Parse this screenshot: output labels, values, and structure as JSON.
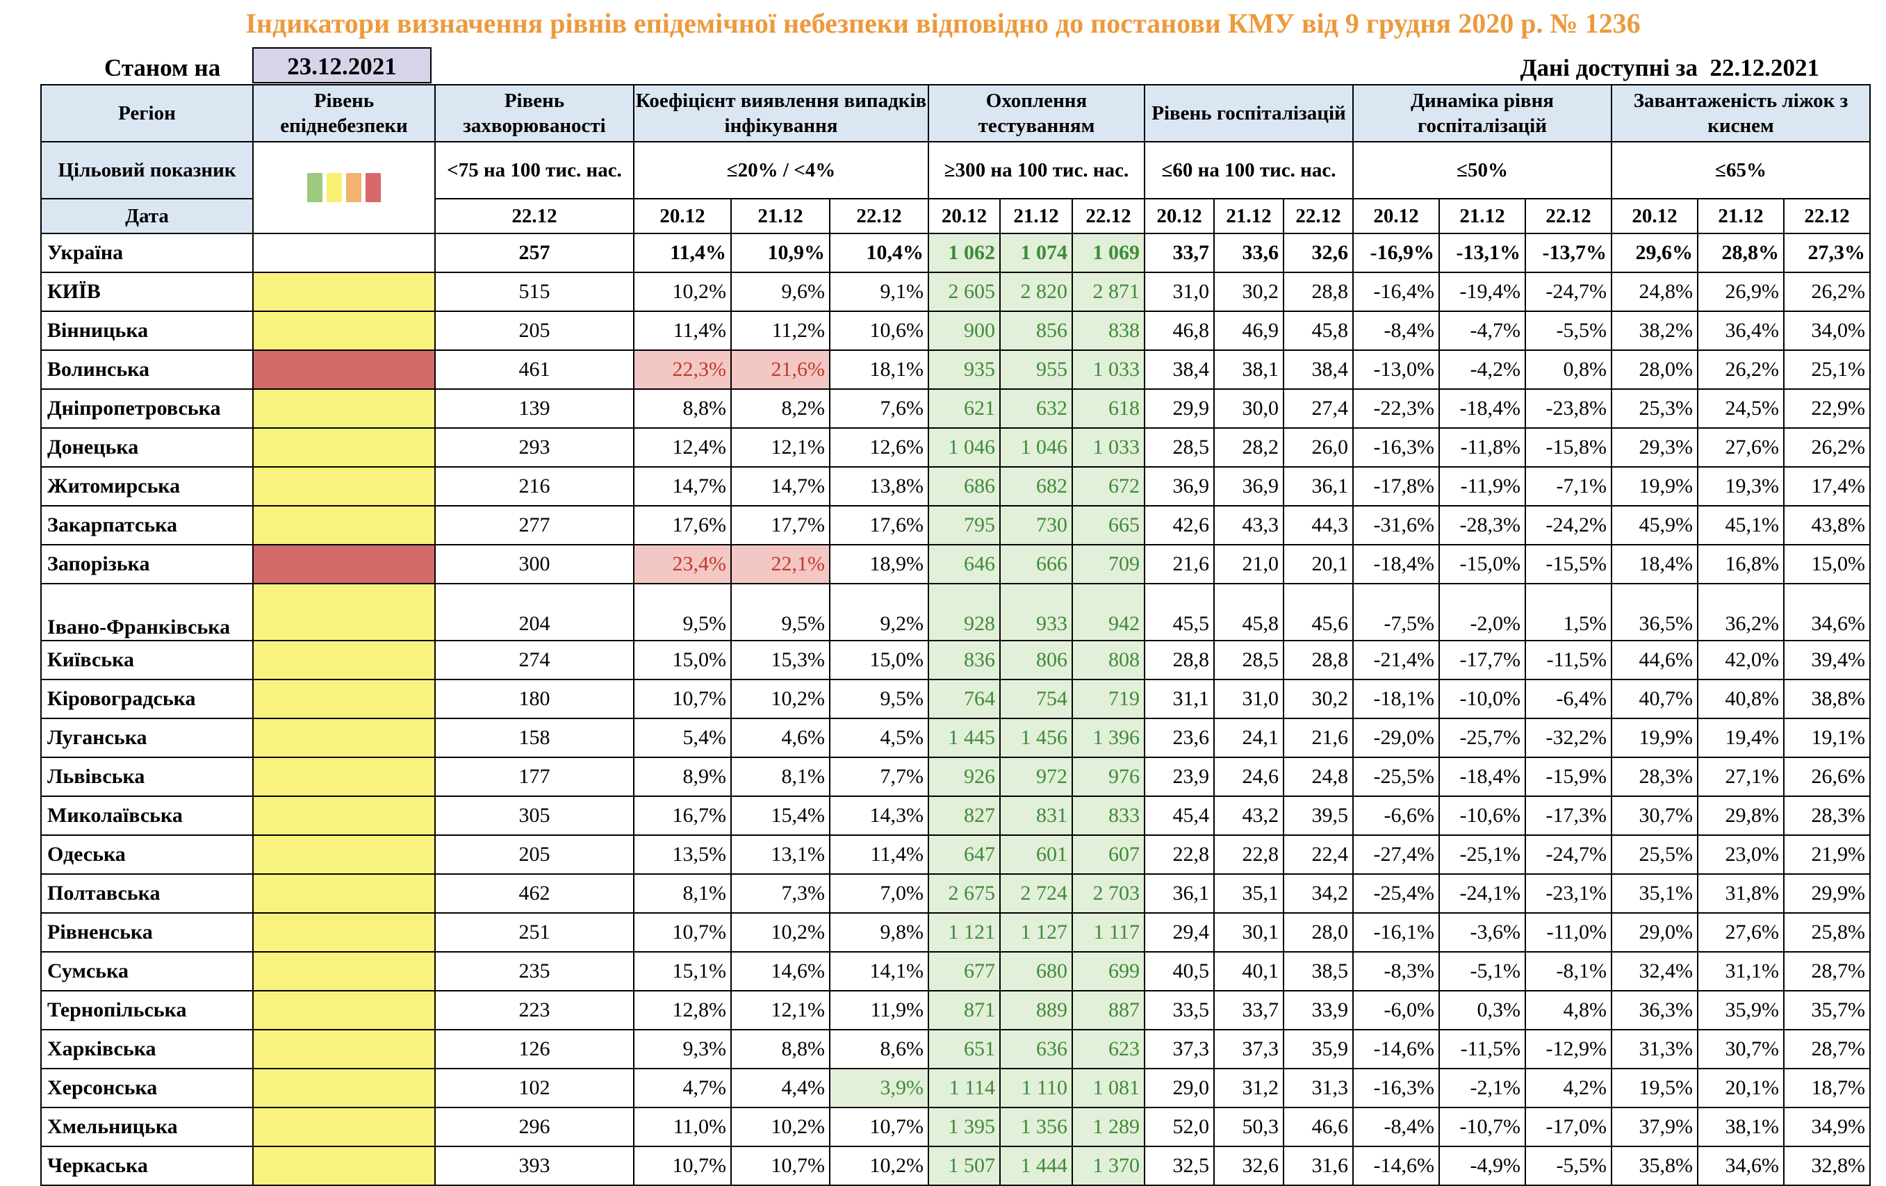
{
  "title": "Індикатори визначення рівнів епідемічної небезпеки відповідно до постанови КМУ від 9 грудня 2020 р. № 1236",
  "as_of_label": "Станом на",
  "as_of_date": "23.12.2021",
  "available_label": "Дані доступні за",
  "available_date": "22.12.2021",
  "headers": {
    "region": "Регіон",
    "level": "Рівень епіднебезпеки",
    "incidence": "Рівень захворюваності",
    "detection": "Коефіцієнт виявлення випадків інфікування",
    "testing": "Охоплення тестуванням",
    "hosp": "Рівень госпіталізацій",
    "hosp_dyn": "Динаміка рівня госпіталізацій",
    "oxygen": "Завантаженість ліжок з киснем"
  },
  "targets": {
    "label": "Цільовий показник",
    "incidence": "<75 на 100 тис. нас.",
    "detection": "≤20% / <4%",
    "testing": "≥300 на 100 тис. нас.",
    "hosp": "≤60 на 100 тис. нас.",
    "hosp_dyn": "≤50%",
    "oxygen": "≤65%"
  },
  "level_colors": {
    "green": "#9cc97d",
    "yellow": "#f8f070",
    "orange": "#f1b36e",
    "red": "#d9686a",
    "region_yellow": "#f7f37e",
    "region_red": "#d56a6b"
  },
  "dates": {
    "label": "Дата",
    "incidence": "22.12",
    "three": [
      "20.12",
      "21.12",
      "22.12"
    ]
  },
  "rows": [
    {
      "region": "Україна",
      "level": "",
      "inc": "257",
      "det": [
        "11,4%",
        "10,9%",
        "10,4%"
      ],
      "test": [
        "1 062",
        "1 074",
        "1 069"
      ],
      "hosp": [
        "33,7",
        "33,6",
        "32,6"
      ],
      "dyn": [
        "-16,9%",
        "-13,1%",
        "-13,7%"
      ],
      "oxy": [
        "29,6%",
        "28,8%",
        "27,3%"
      ]
    },
    {
      "region": "КИЇВ",
      "level": "yellow",
      "inc": "515",
      "det": [
        "10,2%",
        "9,6%",
        "9,1%"
      ],
      "test": [
        "2 605",
        "2 820",
        "2 871"
      ],
      "hosp": [
        "31,0",
        "30,2",
        "28,8"
      ],
      "dyn": [
        "-16,4%",
        "-19,4%",
        "-24,7%"
      ],
      "oxy": [
        "24,8%",
        "26,9%",
        "26,2%"
      ]
    },
    {
      "region": "Вінницька",
      "level": "yellow",
      "inc": "205",
      "det": [
        "11,4%",
        "11,2%",
        "10,6%"
      ],
      "test": [
        "900",
        "856",
        "838"
      ],
      "hosp": [
        "46,8",
        "46,9",
        "45,8"
      ],
      "dyn": [
        "-8,4%",
        "-4,7%",
        "-5,5%"
      ],
      "oxy": [
        "38,2%",
        "36,4%",
        "34,0%"
      ]
    },
    {
      "region": "Волинська",
      "level": "red",
      "inc": "461",
      "det": [
        "22,3%",
        "21,6%",
        "18,1%"
      ],
      "test": [
        "935",
        "955",
        "1 033"
      ],
      "hosp": [
        "38,4",
        "38,1",
        "38,4"
      ],
      "dyn": [
        "-13,0%",
        "-4,2%",
        "0,8%"
      ],
      "oxy": [
        "28,0%",
        "26,2%",
        "25,1%"
      ],
      "det_hl": [
        "r",
        "r",
        ""
      ]
    },
    {
      "region": "Дніпропетровська",
      "level": "yellow",
      "inc": "139",
      "det": [
        "8,8%",
        "8,2%",
        "7,6%"
      ],
      "test": [
        "621",
        "632",
        "618"
      ],
      "hosp": [
        "29,9",
        "30,0",
        "27,4"
      ],
      "dyn": [
        "-22,3%",
        "-18,4%",
        "-23,8%"
      ],
      "oxy": [
        "25,3%",
        "24,5%",
        "22,9%"
      ]
    },
    {
      "region": "Донецька",
      "level": "yellow",
      "inc": "293",
      "det": [
        "12,4%",
        "12,1%",
        "12,6%"
      ],
      "test": [
        "1 046",
        "1 046",
        "1 033"
      ],
      "hosp": [
        "28,5",
        "28,2",
        "26,0"
      ],
      "dyn": [
        "-16,3%",
        "-11,8%",
        "-15,8%"
      ],
      "oxy": [
        "29,3%",
        "27,6%",
        "26,2%"
      ]
    },
    {
      "region": "Житомирська",
      "level": "yellow",
      "inc": "216",
      "det": [
        "14,7%",
        "14,7%",
        "13,8%"
      ],
      "test": [
        "686",
        "682",
        "672"
      ],
      "hosp": [
        "36,9",
        "36,9",
        "36,1"
      ],
      "dyn": [
        "-17,8%",
        "-11,9%",
        "-7,1%"
      ],
      "oxy": [
        "19,9%",
        "19,3%",
        "17,4%"
      ]
    },
    {
      "region": "Закарпатська",
      "level": "yellow",
      "inc": "277",
      "det": [
        "17,6%",
        "17,7%",
        "17,6%"
      ],
      "test": [
        "795",
        "730",
        "665"
      ],
      "hosp": [
        "42,6",
        "43,3",
        "44,3"
      ],
      "dyn": [
        "-31,6%",
        "-28,3%",
        "-24,2%"
      ],
      "oxy": [
        "45,9%",
        "45,1%",
        "43,8%"
      ]
    },
    {
      "region": "Запорізька",
      "level": "red",
      "inc": "300",
      "det": [
        "23,4%",
        "22,1%",
        "18,9%"
      ],
      "test": [
        "646",
        "666",
        "709"
      ],
      "hosp": [
        "21,6",
        "21,0",
        "20,1"
      ],
      "dyn": [
        "-18,4%",
        "-15,0%",
        "-15,5%"
      ],
      "oxy": [
        "18,4%",
        "16,8%",
        "15,0%"
      ],
      "det_hl": [
        "r",
        "r",
        ""
      ]
    },
    {
      "region": "Івано-Франківська",
      "level": "yellow",
      "inc": "204",
      "det": [
        "9,5%",
        "9,5%",
        "9,2%"
      ],
      "test": [
        "928",
        "933",
        "942"
      ],
      "hosp": [
        "45,5",
        "45,8",
        "45,6"
      ],
      "dyn": [
        "-7,5%",
        "-2,0%",
        "1,5%"
      ],
      "oxy": [
        "36,5%",
        "36,2%",
        "34,6%"
      ],
      "tall": true
    },
    {
      "region": "Київська",
      "level": "yellow",
      "inc": "274",
      "det": [
        "15,0%",
        "15,3%",
        "15,0%"
      ],
      "test": [
        "836",
        "806",
        "808"
      ],
      "hosp": [
        "28,8",
        "28,5",
        "28,8"
      ],
      "dyn": [
        "-21,4%",
        "-17,7%",
        "-11,5%"
      ],
      "oxy": [
        "44,6%",
        "42,0%",
        "39,4%"
      ]
    },
    {
      "region": "Кіровоградська",
      "level": "yellow",
      "inc": "180",
      "det": [
        "10,7%",
        "10,2%",
        "9,5%"
      ],
      "test": [
        "764",
        "754",
        "719"
      ],
      "hosp": [
        "31,1",
        "31,0",
        "30,2"
      ],
      "dyn": [
        "-18,1%",
        "-10,0%",
        "-6,4%"
      ],
      "oxy": [
        "40,7%",
        "40,8%",
        "38,8%"
      ]
    },
    {
      "region": "Луганська",
      "level": "yellow",
      "inc": "158",
      "det": [
        "5,4%",
        "4,6%",
        "4,5%"
      ],
      "test": [
        "1 445",
        "1 456",
        "1 396"
      ],
      "hosp": [
        "23,6",
        "24,1",
        "21,6"
      ],
      "dyn": [
        "-29,0%",
        "-25,7%",
        "-32,2%"
      ],
      "oxy": [
        "19,9%",
        "19,4%",
        "19,1%"
      ]
    },
    {
      "region": "Львівська",
      "level": "yellow",
      "inc": "177",
      "det": [
        "8,9%",
        "8,1%",
        "7,7%"
      ],
      "test": [
        "926",
        "972",
        "976"
      ],
      "hosp": [
        "23,9",
        "24,6",
        "24,8"
      ],
      "dyn": [
        "-25,5%",
        "-18,4%",
        "-15,9%"
      ],
      "oxy": [
        "28,3%",
        "27,1%",
        "26,6%"
      ]
    },
    {
      "region": "Миколаївська",
      "level": "yellow",
      "inc": "305",
      "det": [
        "16,7%",
        "15,4%",
        "14,3%"
      ],
      "test": [
        "827",
        "831",
        "833"
      ],
      "hosp": [
        "45,4",
        "43,2",
        "39,5"
      ],
      "dyn": [
        "-6,6%",
        "-10,6%",
        "-17,3%"
      ],
      "oxy": [
        "30,7%",
        "29,8%",
        "28,3%"
      ]
    },
    {
      "region": "Одеська",
      "level": "yellow",
      "inc": "205",
      "det": [
        "13,5%",
        "13,1%",
        "11,4%"
      ],
      "test": [
        "647",
        "601",
        "607"
      ],
      "hosp": [
        "22,8",
        "22,8",
        "22,4"
      ],
      "dyn": [
        "-27,4%",
        "-25,1%",
        "-24,7%"
      ],
      "oxy": [
        "25,5%",
        "23,0%",
        "21,9%"
      ]
    },
    {
      "region": "Полтавська",
      "level": "yellow",
      "inc": "462",
      "det": [
        "8,1%",
        "7,3%",
        "7,0%"
      ],
      "test": [
        "2 675",
        "2 724",
        "2 703"
      ],
      "hosp": [
        "36,1",
        "35,1",
        "34,2"
      ],
      "dyn": [
        "-25,4%",
        "-24,1%",
        "-23,1%"
      ],
      "oxy": [
        "35,1%",
        "31,8%",
        "29,9%"
      ]
    },
    {
      "region": "Рівненська",
      "level": "yellow",
      "inc": "251",
      "det": [
        "10,7%",
        "10,2%",
        "9,8%"
      ],
      "test": [
        "1 121",
        "1 127",
        "1 117"
      ],
      "hosp": [
        "29,4",
        "30,1",
        "28,0"
      ],
      "dyn": [
        "-16,1%",
        "-3,6%",
        "-11,0%"
      ],
      "oxy": [
        "29,0%",
        "27,6%",
        "25,8%"
      ]
    },
    {
      "region": "Сумська",
      "level": "yellow",
      "inc": "235",
      "det": [
        "15,1%",
        "14,6%",
        "14,1%"
      ],
      "test": [
        "677",
        "680",
        "699"
      ],
      "hosp": [
        "40,5",
        "40,1",
        "38,5"
      ],
      "dyn": [
        "-8,3%",
        "-5,1%",
        "-8,1%"
      ],
      "oxy": [
        "32,4%",
        "31,1%",
        "28,7%"
      ]
    },
    {
      "region": "Тернопільська",
      "level": "yellow",
      "inc": "223",
      "det": [
        "12,8%",
        "12,1%",
        "11,9%"
      ],
      "test": [
        "871",
        "889",
        "887"
      ],
      "hosp": [
        "33,5",
        "33,7",
        "33,9"
      ],
      "dyn": [
        "-6,0%",
        "0,3%",
        "4,8%"
      ],
      "oxy": [
        "36,3%",
        "35,9%",
        "35,7%"
      ]
    },
    {
      "region": "Харківська",
      "level": "yellow",
      "inc": "126",
      "det": [
        "9,3%",
        "8,8%",
        "8,6%"
      ],
      "test": [
        "651",
        "636",
        "623"
      ],
      "hosp": [
        "37,3",
        "37,3",
        "35,9"
      ],
      "dyn": [
        "-14,6%",
        "-11,5%",
        "-12,9%"
      ],
      "oxy": [
        "31,3%",
        "30,7%",
        "28,7%"
      ]
    },
    {
      "region": "Херсонська",
      "level": "yellow",
      "inc": "102",
      "det": [
        "4,7%",
        "4,4%",
        "3,9%"
      ],
      "test": [
        "1 114",
        "1 110",
        "1 081"
      ],
      "hosp": [
        "29,0",
        "31,2",
        "31,3"
      ],
      "dyn": [
        "-16,3%",
        "-2,1%",
        "4,2%"
      ],
      "oxy": [
        "19,5%",
        "20,1%",
        "18,7%"
      ],
      "det_hl": [
        "",
        "",
        "g"
      ]
    },
    {
      "region": "Хмельницька",
      "level": "yellow",
      "inc": "296",
      "det": [
        "11,0%",
        "10,2%",
        "10,7%"
      ],
      "test": [
        "1 395",
        "1 356",
        "1 289"
      ],
      "hosp": [
        "52,0",
        "50,3",
        "46,6"
      ],
      "dyn": [
        "-8,4%",
        "-10,7%",
        "-17,0%"
      ],
      "oxy": [
        "37,9%",
        "38,1%",
        "34,9%"
      ]
    },
    {
      "region": "Черкаська",
      "level": "yellow",
      "inc": "393",
      "det": [
        "10,7%",
        "10,7%",
        "10,2%"
      ],
      "test": [
        "1 507",
        "1 444",
        "1 370"
      ],
      "hosp": [
        "32,5",
        "32,6",
        "31,6"
      ],
      "dyn": [
        "-14,6%",
        "-4,9%",
        "-5,5%"
      ],
      "oxy": [
        "35,8%",
        "34,6%",
        "32,8%"
      ]
    }
  ]
}
